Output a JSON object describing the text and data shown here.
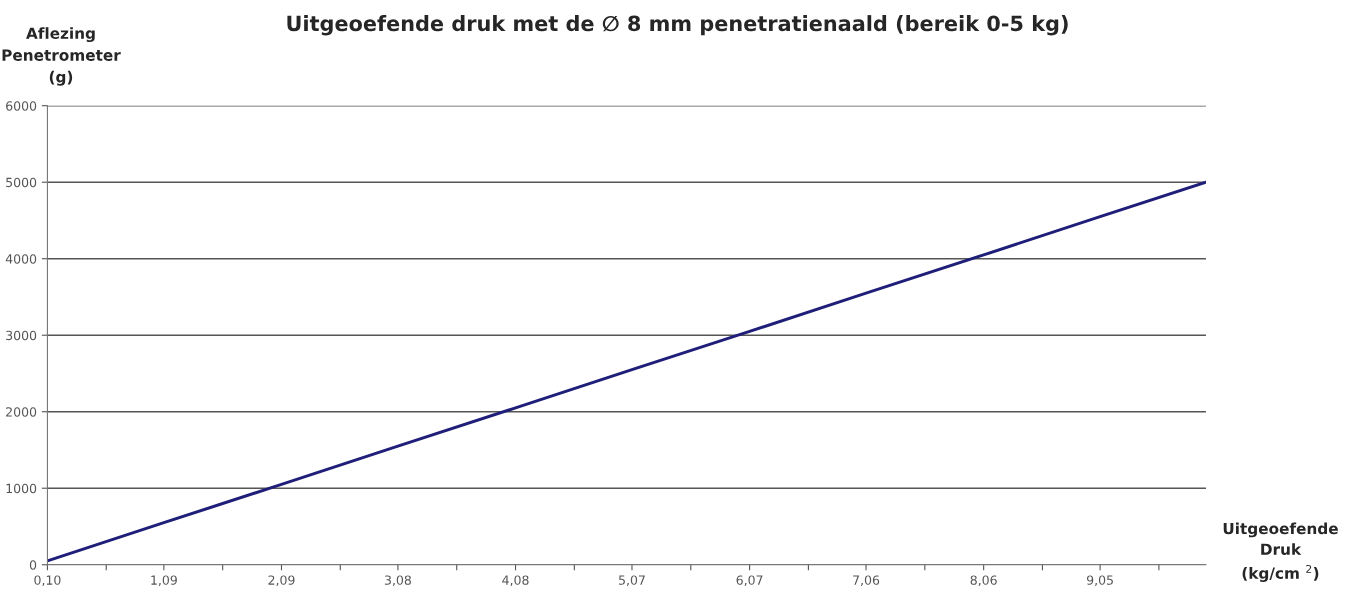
{
  "chart_data": {
    "type": "line",
    "title": "Uitgeoefende druk met de ∅ 8 mm penetratienaald (bereik 0-5 kg)",
    "xlabel": "Uitgeoefende\nDruk\n(kg/cm $^{2}$)",
    "ylabel": "Aflezing\nPenetrometer\n(g)",
    "x": [
      0.1,
      1.09,
      2.09,
      3.08,
      4.08,
      5.07,
      6.07,
      7.06,
      8.06,
      9.05,
      9.95
    ],
    "series": [
      {
        "color": "#1f1f7a",
        "values": [
          50,
          550,
          1050,
          1550,
          2050,
          2550,
          3050,
          3550,
          4050,
          4550,
          5000
        ]
      }
    ],
    "xlim": [
      0.1,
      9.95
    ],
    "xticks": [
      {
        "value": 0.1,
        "label": "0,10"
      },
      {
        "value": 0.6,
        "label": null
      },
      {
        "value": 1.09,
        "label": "1,09"
      },
      {
        "value": 1.59,
        "label": null
      },
      {
        "value": 2.09,
        "label": "2,09"
      },
      {
        "value": 2.59,
        "label": null
      },
      {
        "value": 3.08,
        "label": "3,08"
      },
      {
        "value": 3.58,
        "label": null
      },
      {
        "value": 4.08,
        "label": "4,08"
      },
      {
        "value": 4.58,
        "label": null
      },
      {
        "value": 5.07,
        "label": "5,07"
      },
      {
        "value": 5.57,
        "label": null
      },
      {
        "value": 6.07,
        "label": "6,07"
      },
      {
        "value": 6.57,
        "label": null
      },
      {
        "value": 7.06,
        "label": "7,06"
      },
      {
        "value": 7.56,
        "label": null
      },
      {
        "value": 8.06,
        "label": "8,06"
      },
      {
        "value": 8.56,
        "label": null
      },
      {
        "value": 9.05,
        "label": "9,05"
      },
      {
        "value": 9.55,
        "label": null
      }
    ],
    "ylim": [
      0,
      6000
    ],
    "yticks": [
      0,
      1000,
      2000,
      3000,
      4000,
      5000,
      6000
    ],
    "grid": "y",
    "legend": false,
    "marker": "none",
    "line_style": "solid"
  }
}
